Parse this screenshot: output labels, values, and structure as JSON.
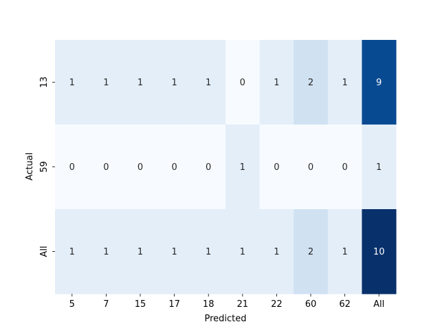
{
  "chart_data": {
    "type": "heatmap",
    "title": "",
    "xlabel": "Predicted",
    "ylabel": "Actual",
    "x_categories": [
      "5",
      "7",
      "15",
      "17",
      "18",
      "21",
      "22",
      "60",
      "62",
      "All"
    ],
    "y_categories": [
      "13",
      "59",
      "All"
    ],
    "values": [
      [
        1,
        1,
        1,
        1,
        1,
        0,
        1,
        2,
        1,
        9
      ],
      [
        0,
        0,
        0,
        0,
        0,
        1,
        0,
        0,
        0,
        1
      ],
      [
        1,
        1,
        1,
        1,
        1,
        1,
        1,
        2,
        1,
        10
      ]
    ],
    "colormap": "Blues",
    "value_range": [
      0,
      10
    ],
    "annotations": true,
    "colorbar": false
  }
}
